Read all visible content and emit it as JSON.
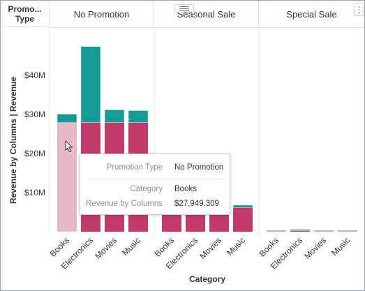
{
  "header": {
    "corner_label": "Promo... Type",
    "columns": [
      "No Promotion",
      "Seasonal Sale",
      "Special Sale"
    ]
  },
  "icons": {
    "drag_handle": "drag-handle-icon",
    "menu": "more-vertical-icon",
    "cursor": "pointer-cursor-icon"
  },
  "menu_glyph": "⋮",
  "colors": {
    "base_series": "#c03a6a",
    "top_series": "#169a94",
    "highlight": "#e8b7c8",
    "grid": "#e3e6e9"
  },
  "tooltip": {
    "rows": [
      {
        "key": "Promotion Type",
        "value": "No Promotion"
      },
      {
        "key": "Category",
        "value": "Books"
      },
      {
        "key": "Revenue by Columns",
        "value": "$27,949,309"
      }
    ]
  },
  "chart_data": {
    "type": "bar",
    "stacked": true,
    "ylabel": "Revenue by Columns  |  Revenue",
    "xlabel": "Category",
    "yticks": [
      "$10M",
      "$20M",
      "$30M",
      "$40M"
    ],
    "ytick_values": [
      10,
      20,
      30,
      40
    ],
    "ylim": [
      0,
      48
    ],
    "grid": false,
    "panels": [
      {
        "name": "No Promotion",
        "categories": [
          "Books",
          "Electronics",
          "Movies",
          "Music"
        ],
        "series": [
          {
            "values": [
              27.9,
              27.9,
              27.9,
              27.9
            ]
          },
          {
            "values": [
              2.2,
              19.5,
              3.3,
              3.1
            ]
          }
        ],
        "highlighted_index": 0
      },
      {
        "name": "Seasonal Sale",
        "categories": [
          "Books",
          "Electronics",
          "Movies",
          "Music"
        ],
        "series": [
          {
            "values": [
              6.2,
              6.2,
              6.2,
              6.2
            ]
          },
          {
            "values": [
              0.3,
              0.4,
              0.4,
              0.6
            ]
          }
        ],
        "highlighted_index": null
      },
      {
        "name": "Special Sale",
        "categories": [
          "Books",
          "Electronics",
          "Movies",
          "Music"
        ],
        "series": [
          {
            "values": [
              0.25,
              0.25,
              0.25,
              0.25
            ]
          },
          {
            "values": [
              0.05,
              0.35,
              0.05,
              0.05
            ]
          }
        ],
        "highlighted_index": null
      }
    ]
  }
}
